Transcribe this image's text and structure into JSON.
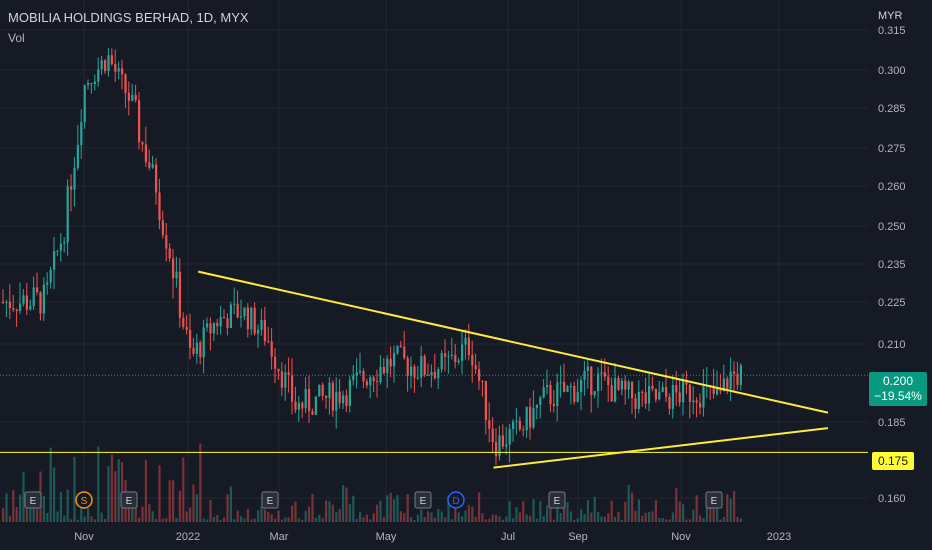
{
  "header": {
    "title": "MOBILIA HOLDINGS BERHAD, 1D, MYX",
    "volume_label": "Vol",
    "currency": "MYR"
  },
  "price_axis": {
    "ticks": [
      "0.315",
      "0.300",
      "0.285",
      "0.275",
      "0.260",
      "0.250",
      "0.235",
      "0.225",
      "0.210",
      "0.185",
      "0.160"
    ]
  },
  "time_axis": {
    "labels": [
      "Nov",
      "2022",
      "Mar",
      "May",
      "Jul",
      "Sep",
      "Nov",
      "2023"
    ]
  },
  "last_price": {
    "value": "0.200",
    "change": "−19.54%"
  },
  "level": {
    "value": "0.175"
  },
  "events": [
    {
      "label": "E",
      "type": "earnings"
    },
    {
      "label": "S",
      "type": "split"
    },
    {
      "label": "E",
      "type": "earnings"
    },
    {
      "label": "E",
      "type": "earnings"
    },
    {
      "label": "E",
      "type": "earnings"
    },
    {
      "label": "D",
      "type": "dividend"
    },
    {
      "label": "E",
      "type": "earnings"
    },
    {
      "label": "E",
      "type": "earnings"
    }
  ],
  "colors": {
    "background": "#161a25",
    "up": "#26a69a",
    "down": "#ef5350",
    "trendline": "#ffeb3b",
    "level_line": "#ffff33",
    "grid": "#232733",
    "dividend": "#2962ff",
    "split": "#f7931a"
  },
  "chart_data": {
    "type": "candlestick",
    "symbol": "MOBILIA HOLDINGS BERHAD",
    "interval": "1D",
    "exchange": "MYX",
    "price_ticks": [
      0.315,
      0.3,
      0.285,
      0.275,
      0.26,
      0.25,
      0.235,
      0.225,
      0.21,
      0.185,
      0.16
    ],
    "ylim": [
      0.155,
      0.317
    ],
    "last_close": 0.2,
    "change_percent": -19.54,
    "series": [
      {
        "name": "close",
        "x": [
          "2021-10-08",
          "2021-10-20",
          "2021-11-01",
          "2021-11-15",
          "2021-12-01",
          "2021-12-15",
          "2022-01-05",
          "2022-01-20",
          "2022-02-05",
          "2022-02-20",
          "2022-03-10",
          "2022-03-25",
          "2022-04-10",
          "2022-04-25",
          "2022-05-10",
          "2022-05-25",
          "2022-06-10",
          "2022-06-25",
          "2022-07-10",
          "2022-07-25",
          "2022-08-10",
          "2022-08-25",
          "2022-09-10",
          "2022-09-25",
          "2022-10-10",
          "2022-10-25",
          "2022-11-10",
          "2022-11-25",
          "2022-12-01"
        ],
        "values": [
          0.225,
          0.25,
          0.295,
          0.305,
          0.285,
          0.26,
          0.205,
          0.218,
          0.222,
          0.213,
          0.19,
          0.192,
          0.195,
          0.201,
          0.205,
          0.202,
          0.203,
          0.21,
          0.178,
          0.182,
          0.193,
          0.195,
          0.199,
          0.194,
          0.192,
          0.193,
          0.195,
          0.193,
          0.2
        ]
      }
    ],
    "trendlines": [
      {
        "name": "descending",
        "from": {
          "x": "2022-01-10",
          "y": 0.233
        },
        "to": {
          "x": "2023-01-31",
          "y": 0.188
        }
      },
      {
        "name": "ascending",
        "from": {
          "x": "2022-07-10",
          "y": 0.17
        },
        "to": {
          "x": "2023-01-31",
          "y": 0.183
        }
      }
    ],
    "horizontal_levels": [
      0.175
    ]
  }
}
